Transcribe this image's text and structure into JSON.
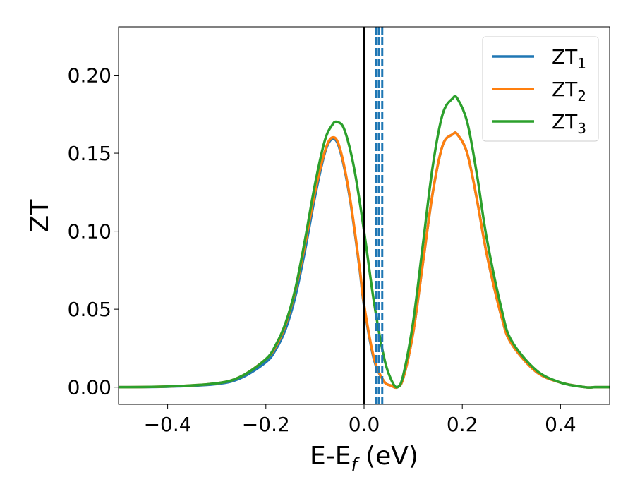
{
  "chart_data": {
    "type": "line",
    "xlabel": {
      "base": "E-E",
      "sub": "f",
      "suffix": " (eV)"
    },
    "ylabel": "ZT",
    "xlim": [
      -0.5,
      0.5
    ],
    "ylim": [
      -0.011,
      0.231
    ],
    "xticks": [
      -0.4,
      -0.2,
      0.0,
      0.2,
      0.4
    ],
    "xtick_labels": [
      "−0.4",
      "−0.2",
      "0.0",
      "0.2",
      "0.4"
    ],
    "yticks": [
      0.0,
      0.05,
      0.1,
      0.15,
      0.2
    ],
    "ytick_labels": [
      "0.00",
      "0.05",
      "0.10",
      "0.15",
      "0.20"
    ],
    "grid": false,
    "legend": "top-right",
    "vertical_lines": [
      {
        "x": 0.0,
        "style": "solid",
        "color": "#000000"
      },
      {
        "x": 0.025,
        "style": "dashed",
        "color": "#1f77b4"
      },
      {
        "x": 0.03,
        "style": "dashed",
        "color": "#1f77b4"
      },
      {
        "x": 0.037,
        "style": "dashed",
        "color": "#1f77b4"
      }
    ],
    "series": [
      {
        "name": "ZT",
        "name_sub": "1",
        "color": "#1f77b4",
        "points": [
          [
            -0.5,
            0
          ],
          [
            -0.4,
            0.0003
          ],
          [
            -0.3,
            0.002
          ],
          [
            -0.25,
            0.006
          ],
          [
            -0.2,
            0.016
          ],
          [
            -0.18,
            0.024
          ],
          [
            -0.16,
            0.037
          ],
          [
            -0.14,
            0.058
          ],
          [
            -0.12,
            0.088
          ],
          [
            -0.1,
            0.122
          ],
          [
            -0.08,
            0.15
          ],
          [
            -0.065,
            0.159
          ],
          [
            -0.05,
            0.153
          ],
          [
            -0.03,
            0.123
          ],
          [
            -0.01,
            0.078
          ],
          [
            0.0,
            0.052
          ],
          [
            0.02,
            0.018
          ],
          [
            0.04,
            0.004
          ],
          [
            0.055,
            0.001
          ],
          [
            0.068,
            0.0
          ],
          [
            0.08,
            0.006
          ],
          [
            0.1,
            0.035
          ],
          [
            0.12,
            0.08
          ],
          [
            0.14,
            0.125
          ],
          [
            0.16,
            0.155
          ],
          [
            0.18,
            0.162
          ],
          [
            0.19,
            0.162
          ],
          [
            0.21,
            0.15
          ],
          [
            0.23,
            0.12
          ],
          [
            0.25,
            0.085
          ],
          [
            0.28,
            0.045
          ],
          [
            0.3,
            0.028
          ],
          [
            0.35,
            0.01
          ],
          [
            0.4,
            0.003
          ],
          [
            0.45,
            0.0
          ],
          [
            0.47,
            0.0
          ],
          [
            0.5,
            0.0
          ]
        ]
      },
      {
        "name": "ZT",
        "name_sub": "2",
        "color": "#ff7f0e",
        "points": [
          [
            -0.5,
            0
          ],
          [
            -0.4,
            0.0004
          ],
          [
            -0.3,
            0.0025
          ],
          [
            -0.25,
            0.007
          ],
          [
            -0.2,
            0.018
          ],
          [
            -0.18,
            0.026
          ],
          [
            -0.16,
            0.04
          ],
          [
            -0.14,
            0.062
          ],
          [
            -0.12,
            0.092
          ],
          [
            -0.1,
            0.125
          ],
          [
            -0.08,
            0.151
          ],
          [
            -0.065,
            0.16
          ],
          [
            -0.05,
            0.154
          ],
          [
            -0.03,
            0.124
          ],
          [
            -0.01,
            0.079
          ],
          [
            0.0,
            0.053
          ],
          [
            0.02,
            0.019
          ],
          [
            0.04,
            0.004
          ],
          [
            0.055,
            0.001
          ],
          [
            0.068,
            0.0
          ],
          [
            0.08,
            0.006
          ],
          [
            0.1,
            0.035
          ],
          [
            0.12,
            0.08
          ],
          [
            0.14,
            0.125
          ],
          [
            0.16,
            0.155
          ],
          [
            0.18,
            0.162
          ],
          [
            0.19,
            0.162
          ],
          [
            0.21,
            0.15
          ],
          [
            0.23,
            0.12
          ],
          [
            0.25,
            0.085
          ],
          [
            0.28,
            0.045
          ],
          [
            0.3,
            0.028
          ],
          [
            0.35,
            0.01
          ],
          [
            0.4,
            0.003
          ],
          [
            0.45,
            0.0
          ],
          [
            0.47,
            0.0
          ],
          [
            0.5,
            0.0
          ]
        ]
      },
      {
        "name": "ZT",
        "name_sub": "3",
        "color": "#2ca02c",
        "points": [
          [
            -0.5,
            0
          ],
          [
            -0.4,
            0.0004
          ],
          [
            -0.3,
            0.0025
          ],
          [
            -0.25,
            0.007
          ],
          [
            -0.2,
            0.018
          ],
          [
            -0.18,
            0.027
          ],
          [
            -0.16,
            0.041
          ],
          [
            -0.14,
            0.063
          ],
          [
            -0.12,
            0.095
          ],
          [
            -0.1,
            0.13
          ],
          [
            -0.08,
            0.158
          ],
          [
            -0.065,
            0.168
          ],
          [
            -0.055,
            0.17
          ],
          [
            -0.04,
            0.165
          ],
          [
            -0.02,
            0.14
          ],
          [
            0.0,
            0.1
          ],
          [
            0.02,
            0.055
          ],
          [
            0.04,
            0.02
          ],
          [
            0.055,
            0.005
          ],
          [
            0.068,
            0.0
          ],
          [
            0.08,
            0.008
          ],
          [
            0.1,
            0.042
          ],
          [
            0.12,
            0.092
          ],
          [
            0.14,
            0.142
          ],
          [
            0.16,
            0.175
          ],
          [
            0.18,
            0.185
          ],
          [
            0.19,
            0.185
          ],
          [
            0.21,
            0.17
          ],
          [
            0.23,
            0.136
          ],
          [
            0.25,
            0.095
          ],
          [
            0.28,
            0.05
          ],
          [
            0.3,
            0.03
          ],
          [
            0.35,
            0.011
          ],
          [
            0.4,
            0.003
          ],
          [
            0.45,
            0.0
          ],
          [
            0.47,
            0.0
          ],
          [
            0.5,
            0.0
          ]
        ]
      }
    ]
  }
}
